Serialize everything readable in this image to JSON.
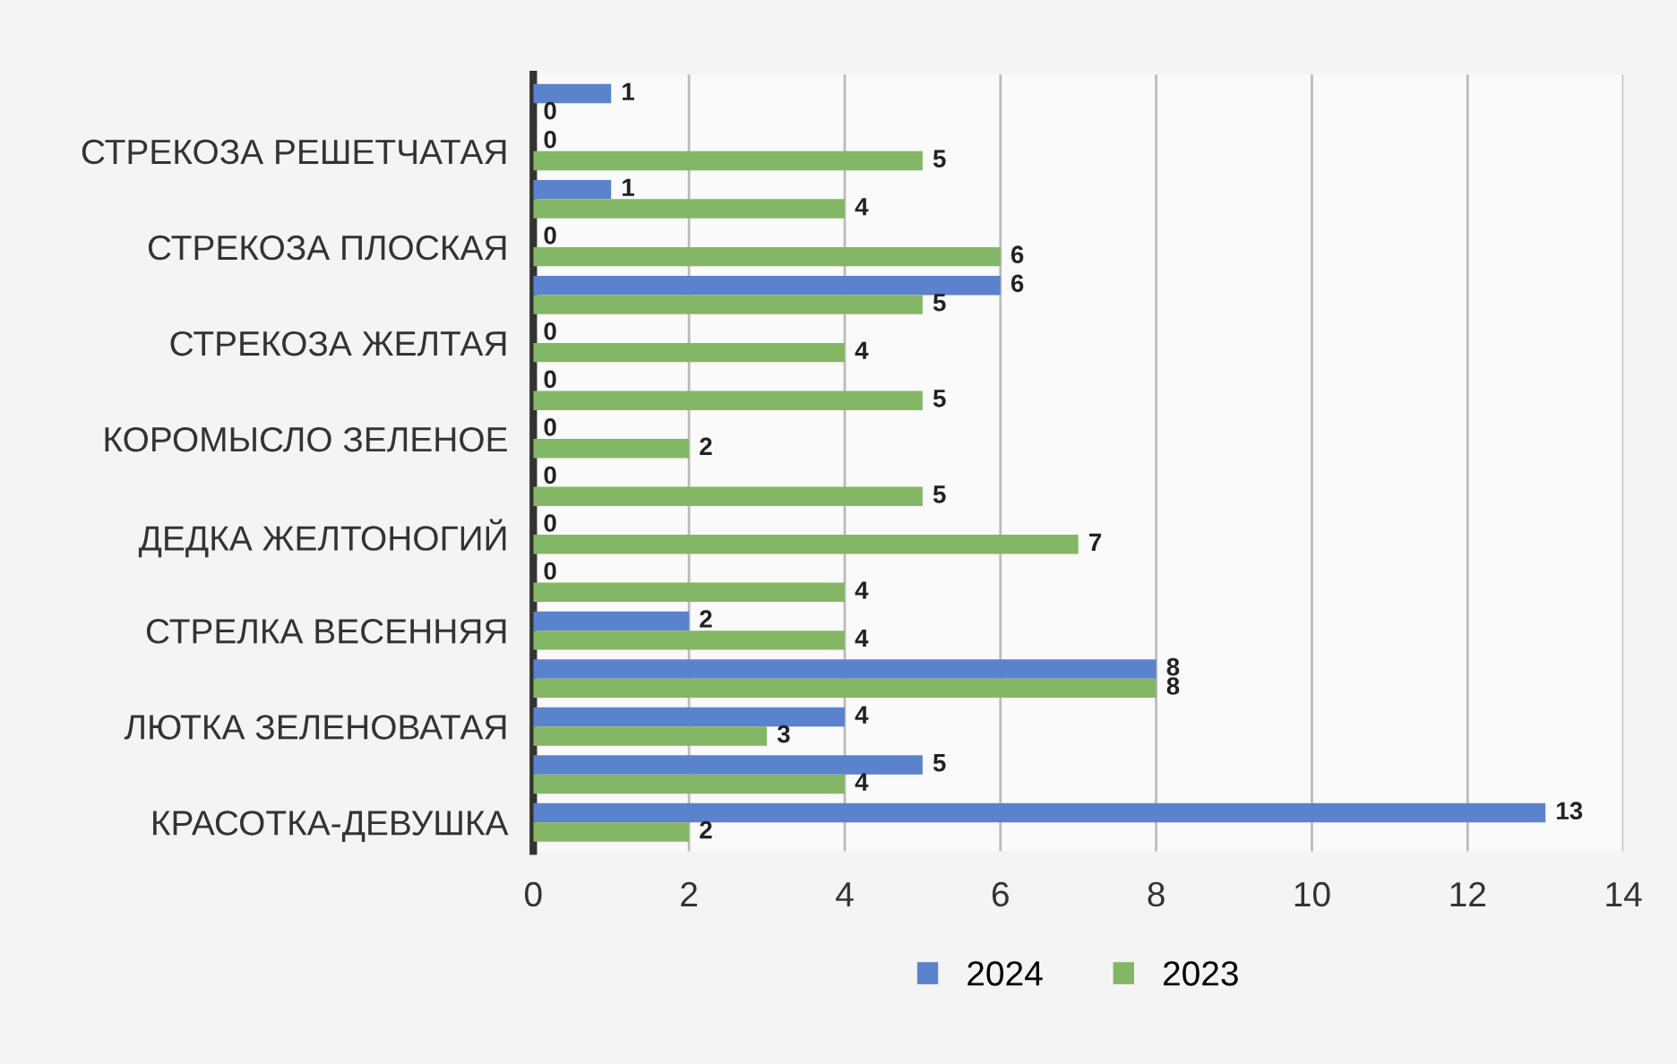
{
  "chart_data": {
    "type": "bar",
    "orientation": "horizontal",
    "categories": [
      null,
      "СТРЕКОЗА РЕШЕТЧАТАЯ",
      null,
      "СТРЕКОЗА ПЛОСКАЯ",
      null,
      "СТРЕКОЗА ЖЕЛТАЯ",
      null,
      "КОРОМЫСЛО ЗЕЛЕНОЕ",
      null,
      "ДЕДКА ЖЕЛТОНОГИЙ",
      null,
      "СТРЕЛКА ВЕСЕННЯЯ",
      null,
      "ЛЮТКА ЗЕЛЕНОВАТАЯ",
      null,
      "КРАСОТКА-ДЕВУШКА"
    ],
    "series": [
      {
        "name": "2024",
        "color": "#5b82cc",
        "values": [
          1,
          0,
          1,
          0,
          6,
          0,
          0,
          0,
          0,
          0,
          0,
          2,
          8,
          4,
          5,
          13
        ]
      },
      {
        "name": "2023",
        "color": "#84b765",
        "values": [
          0,
          5,
          4,
          6,
          5,
          4,
          5,
          2,
          5,
          7,
          4,
          4,
          8,
          3,
          4,
          2
        ]
      }
    ],
    "xlim": [
      0,
      14
    ],
    "xticks": [
      0,
      2,
      4,
      6,
      8,
      10,
      12,
      14
    ],
    "grid": "x",
    "legend": "bottom",
    "data_labels": true
  }
}
